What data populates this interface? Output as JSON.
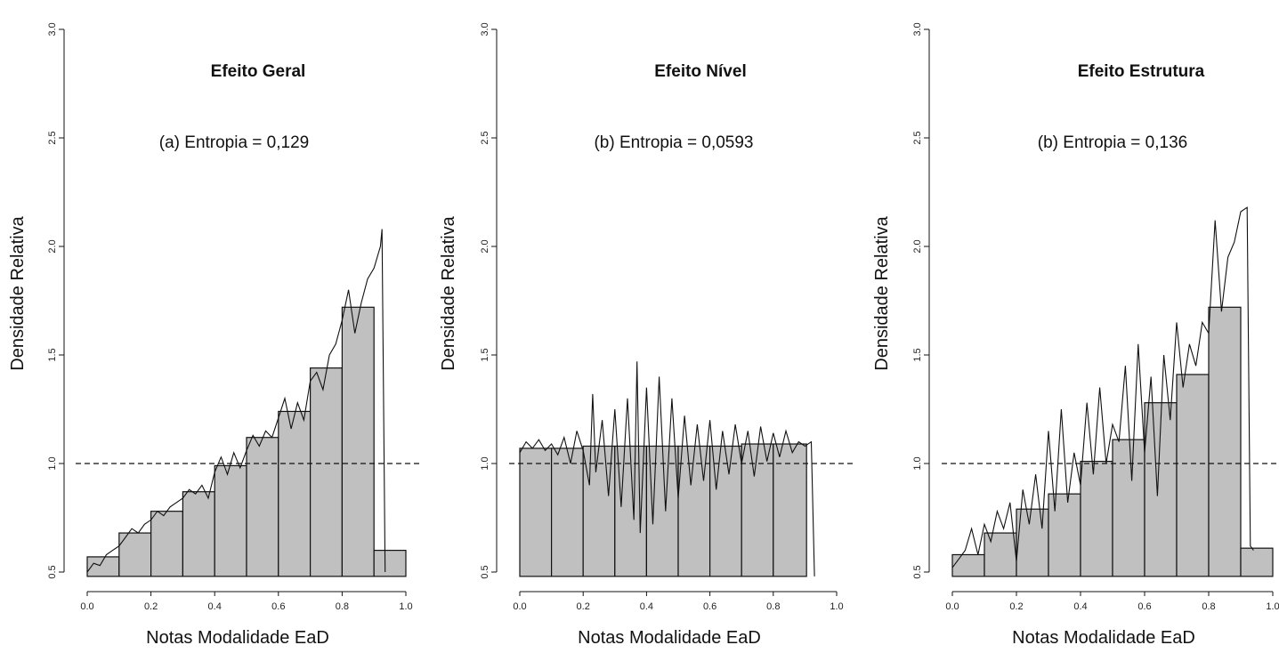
{
  "chart_data": [
    {
      "type": "bar",
      "title": "Efeito Geral",
      "subtitle": "(a) Entropia = 0,129",
      "xlabel": "Notas Modalidade EaD",
      "ylabel": "Densidade Relativa",
      "xlim": [
        0,
        1
      ],
      "ylim": [
        0.5,
        3.0
      ],
      "x_ticks": [
        "0.0",
        "0.2",
        "0.4",
        "0.6",
        "0.8",
        "1.0"
      ],
      "y_ticks": [
        "0.5",
        "1.0",
        "1.5",
        "2.0",
        "2.5",
        "3.0"
      ],
      "reference_line": 1.0,
      "bins": [
        0.0,
        0.1,
        0.2,
        0.3,
        0.4,
        0.5,
        0.6,
        0.7,
        0.8,
        0.9
      ],
      "bin_width": 0.1,
      "values": [
        0.57,
        0.68,
        0.78,
        0.87,
        0.99,
        1.12,
        1.24,
        1.44,
        1.72,
        0.6
      ],
      "curve": {
        "x": [
          0.0,
          0.02,
          0.04,
          0.06,
          0.08,
          0.1,
          0.12,
          0.14,
          0.16,
          0.18,
          0.2,
          0.22,
          0.24,
          0.26,
          0.28,
          0.3,
          0.32,
          0.34,
          0.36,
          0.38,
          0.4,
          0.42,
          0.44,
          0.46,
          0.48,
          0.5,
          0.52,
          0.54,
          0.56,
          0.58,
          0.6,
          0.62,
          0.64,
          0.66,
          0.68,
          0.7,
          0.72,
          0.74,
          0.76,
          0.78,
          0.8,
          0.82,
          0.84,
          0.86,
          0.88,
          0.9,
          0.92,
          0.925,
          0.935
        ],
        "y": [
          0.5,
          0.54,
          0.53,
          0.58,
          0.6,
          0.62,
          0.66,
          0.7,
          0.68,
          0.72,
          0.74,
          0.78,
          0.76,
          0.8,
          0.82,
          0.84,
          0.88,
          0.86,
          0.9,
          0.84,
          0.96,
          1.03,
          0.95,
          1.05,
          0.98,
          1.06,
          1.13,
          1.08,
          1.15,
          1.12,
          1.21,
          1.3,
          1.16,
          1.28,
          1.2,
          1.38,
          1.42,
          1.34,
          1.5,
          1.55,
          1.66,
          1.8,
          1.6,
          1.74,
          1.85,
          1.9,
          2.0,
          2.08,
          0.5
        ]
      }
    },
    {
      "type": "bar",
      "title": "Efeito Nível",
      "subtitle": "(b) Entropia = 0,0593",
      "xlabel": "Notas Modalidade EaD",
      "ylabel": "Densidade Relativa",
      "xlim": [
        0,
        1
      ],
      "ylim": [
        0.5,
        3.0
      ],
      "x_ticks": [
        "0.0",
        "0.2",
        "0.4",
        "0.6",
        "0.8",
        "1.0"
      ],
      "y_ticks": [
        "0.5",
        "1.0",
        "1.5",
        "2.0",
        "2.5",
        "3.0"
      ],
      "reference_line": 1.0,
      "bins": [
        0.0,
        0.1,
        0.2,
        0.3,
        0.4,
        0.5,
        0.6,
        0.7,
        0.8
      ],
      "bin_width": 0.1,
      "bar_right_edge": 0.905,
      "values": [
        1.07,
        1.07,
        1.08,
        1.08,
        1.08,
        1.08,
        1.08,
        1.09,
        1.09
      ],
      "curve": {
        "x": [
          0.0,
          0.02,
          0.04,
          0.06,
          0.08,
          0.1,
          0.12,
          0.14,
          0.16,
          0.18,
          0.2,
          0.22,
          0.23,
          0.24,
          0.26,
          0.28,
          0.3,
          0.32,
          0.34,
          0.36,
          0.37,
          0.38,
          0.4,
          0.42,
          0.44,
          0.46,
          0.48,
          0.5,
          0.52,
          0.54,
          0.56,
          0.58,
          0.6,
          0.62,
          0.64,
          0.66,
          0.68,
          0.7,
          0.72,
          0.74,
          0.76,
          0.78,
          0.8,
          0.82,
          0.84,
          0.86,
          0.88,
          0.9,
          0.92,
          0.93
        ],
        "y": [
          1.05,
          1.1,
          1.07,
          1.11,
          1.06,
          1.09,
          1.04,
          1.12,
          1.0,
          1.15,
          1.06,
          0.9,
          1.32,
          0.96,
          1.2,
          0.85,
          1.25,
          0.8,
          1.3,
          0.74,
          1.47,
          0.68,
          1.35,
          0.72,
          1.4,
          0.78,
          1.3,
          0.84,
          1.22,
          0.9,
          1.18,
          0.92,
          1.2,
          0.88,
          1.15,
          0.95,
          1.18,
          1.0,
          1.15,
          0.94,
          1.17,
          1.01,
          1.14,
          1.03,
          1.15,
          1.05,
          1.1,
          1.08,
          1.1,
          0.48
        ]
      }
    },
    {
      "type": "bar",
      "title": "Efeito Estrutura",
      "subtitle": "(b) Entropia = 0,136",
      "xlabel": "Notas Modalidade EaD",
      "ylabel": "Densidade Relativa",
      "xlim": [
        0,
        1
      ],
      "ylim": [
        0.5,
        3.0
      ],
      "x_ticks": [
        "0.0",
        "0.2",
        "0.4",
        "0.6",
        "0.8",
        "1.0"
      ],
      "y_ticks": [
        "0.5",
        "1.0",
        "1.5",
        "2.0",
        "2.5",
        "3.0"
      ],
      "reference_line": 1.0,
      "bins": [
        0.0,
        0.1,
        0.2,
        0.3,
        0.4,
        0.5,
        0.6,
        0.7,
        0.8,
        0.9
      ],
      "bin_width": 0.1,
      "values": [
        0.58,
        0.68,
        0.79,
        0.86,
        1.01,
        1.11,
        1.28,
        1.41,
        1.72,
        0.61
      ],
      "curve": {
        "x": [
          0.0,
          0.02,
          0.04,
          0.06,
          0.08,
          0.1,
          0.12,
          0.14,
          0.16,
          0.18,
          0.2,
          0.22,
          0.24,
          0.26,
          0.28,
          0.3,
          0.32,
          0.34,
          0.36,
          0.38,
          0.4,
          0.42,
          0.44,
          0.46,
          0.48,
          0.5,
          0.52,
          0.54,
          0.56,
          0.58,
          0.6,
          0.62,
          0.64,
          0.66,
          0.68,
          0.7,
          0.72,
          0.74,
          0.76,
          0.78,
          0.8,
          0.82,
          0.84,
          0.86,
          0.88,
          0.9,
          0.92,
          0.93,
          0.94
        ],
        "y": [
          0.52,
          0.56,
          0.6,
          0.7,
          0.58,
          0.72,
          0.64,
          0.78,
          0.7,
          0.82,
          0.55,
          0.88,
          0.72,
          0.95,
          0.7,
          1.15,
          0.78,
          1.25,
          0.82,
          1.05,
          0.9,
          1.28,
          0.95,
          1.35,
          1.0,
          1.18,
          1.1,
          1.45,
          0.92,
          1.55,
          1.05,
          1.4,
          0.85,
          1.5,
          1.2,
          1.65,
          1.35,
          1.55,
          1.45,
          1.65,
          1.6,
          2.12,
          1.7,
          1.95,
          2.02,
          2.16,
          2.18,
          0.62,
          0.6
        ]
      }
    }
  ]
}
